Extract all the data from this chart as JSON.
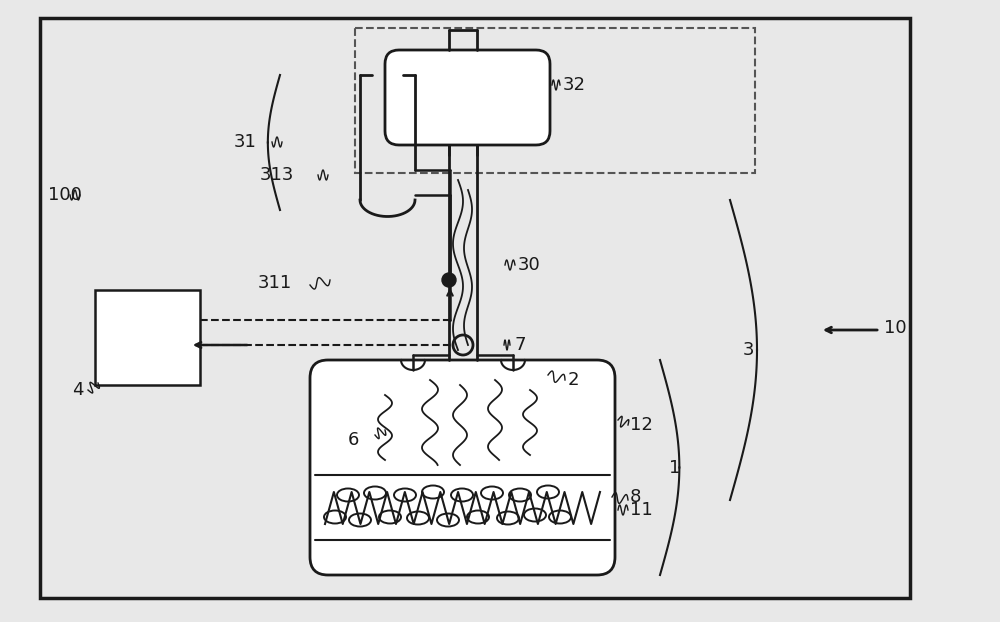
{
  "bg_color": "#e8e8e8",
  "line_color": "#1a1a1a",
  "white": "#ffffff",
  "figsize": [
    10.0,
    6.22
  ],
  "dpi": 100
}
